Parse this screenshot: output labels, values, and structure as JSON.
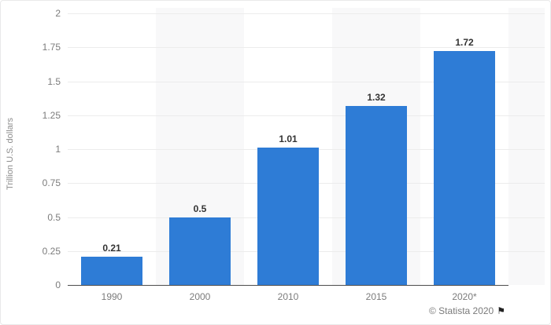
{
  "chart_data": {
    "type": "bar",
    "categories": [
      "1990",
      "2000",
      "2010",
      "2015",
      "2020*"
    ],
    "values": [
      0.21,
      0.5,
      1.01,
      1.32,
      1.72
    ],
    "value_labels": [
      "0.21",
      "0.5",
      "1.01",
      "1.32",
      "1.72"
    ],
    "title": "",
    "xlabel": "",
    "ylabel": "Trillion U.S. dollars",
    "ylim": [
      0,
      2
    ],
    "yticks": [
      0,
      0.25,
      0.5,
      0.75,
      1,
      1.25,
      1.5,
      1.75,
      2
    ],
    "ytick_labels": [
      "0",
      "0.25",
      "0.5",
      "0.75",
      "1",
      "1.25",
      "1.5",
      "1.75",
      "2"
    ],
    "grid": "horizontal",
    "legend": "none",
    "bar_color": "#2e7cd6",
    "band_color": "#f8f8f9",
    "gridline_color": "#ececec",
    "axis_line_color": "#4d4d4d"
  },
  "footer": {
    "attribution": "© Statista 2020",
    "flag_icon": "⚑"
  }
}
